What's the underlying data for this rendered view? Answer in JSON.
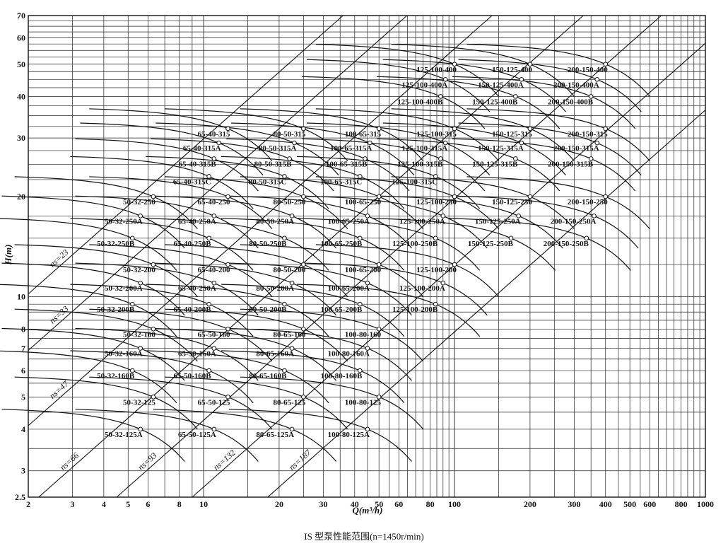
{
  "chart_data": {
    "type": "line",
    "title": "IS 型泵性能范围(n=1450r/min)",
    "xlabel": "Q(m³/h)",
    "ylabel": "H(m)",
    "x_scale": "log",
    "y_scale": "log",
    "xlim": [
      2,
      1000
    ],
    "ylim": [
      2.5,
      70
    ],
    "x_ticks": [
      {
        "v": 2,
        "label": "2"
      },
      {
        "v": 3,
        "label": "3"
      },
      {
        "v": 4,
        "label": "4"
      },
      {
        "v": 5,
        "label": "5"
      },
      {
        "v": 6,
        "label": "6"
      },
      {
        "v": 8,
        "label": "8"
      },
      {
        "v": 10,
        "label": "10"
      },
      {
        "v": 20,
        "label": "20"
      },
      {
        "v": 30,
        "label": "30"
      },
      {
        "v": 40,
        "label": "40"
      },
      {
        "v": 50,
        "label": "50"
      },
      {
        "v": 60,
        "label": "60"
      },
      {
        "v": 80,
        "label": "80"
      },
      {
        "v": 100,
        "label": "100"
      },
      {
        "v": 200,
        "label": "200"
      },
      {
        "v": 300,
        "label": "300"
      },
      {
        "v": 400,
        "label": "400"
      },
      {
        "v": 500,
        "label": "500"
      },
      {
        "v": 600,
        "label": "600"
      },
      {
        "v": 800,
        "label": "800"
      },
      {
        "v": 1000,
        "label": "1000"
      }
    ],
    "y_ticks": [
      {
        "v": 2.5,
        "label": "2.5"
      },
      {
        "v": 3,
        "label": "3"
      },
      {
        "v": 4,
        "label": "4"
      },
      {
        "v": 5,
        "label": "5"
      },
      {
        "v": 6,
        "label": "6"
      },
      {
        "v": 7,
        "label": "7"
      },
      {
        "v": 8,
        "label": "8"
      },
      {
        "v": 10,
        "label": "10"
      },
      {
        "v": 20,
        "label": "20"
      },
      {
        "v": 30,
        "label": "30"
      },
      {
        "v": 40,
        "label": "40"
      },
      {
        "v": 50,
        "label": "50"
      },
      {
        "v": 60,
        "label": "60"
      },
      {
        "v": 70,
        "label": "70"
      }
    ],
    "ns_lines": [
      {
        "label": "ns=23",
        "q": 2,
        "h": 10.2
      },
      {
        "label": "ns=33",
        "q": 2,
        "h": 6.9
      },
      {
        "label": "ns=47",
        "q": 2,
        "h": 4.1
      },
      {
        "label": "ns=66",
        "q": 2.2,
        "h": 2.5
      },
      {
        "label": "ns=93",
        "q": 4.5,
        "h": 2.5
      },
      {
        "label": "ns=132",
        "q": 9,
        "h": 2.5
      },
      {
        "label": "ns=187",
        "q": 18,
        "h": 2.5
      }
    ],
    "pumps": [
      {
        "name": "50-32-125",
        "q": 6.3,
        "h": 5.0
      },
      {
        "name": "50-32-125A",
        "q": 5.6,
        "h": 4.0
      },
      {
        "name": "50-32-160",
        "q": 6.3,
        "h": 8.0
      },
      {
        "name": "50-32-160A",
        "q": 5.6,
        "h": 7.0
      },
      {
        "name": "50-32-160B",
        "q": 5.2,
        "h": 6.0
      },
      {
        "name": "50-32-200",
        "q": 6.3,
        "h": 12.5
      },
      {
        "name": "50-32-200A",
        "q": 5.6,
        "h": 11.0
      },
      {
        "name": "50-32-200B",
        "q": 5.2,
        "h": 9.5
      },
      {
        "name": "50-32-250",
        "q": 6.3,
        "h": 20.0
      },
      {
        "name": "50-32-250A",
        "q": 5.6,
        "h": 17.5
      },
      {
        "name": "50-32-250B",
        "q": 5.2,
        "h": 15.0
      },
      {
        "name": "65-50-125",
        "q": 12.5,
        "h": 5.0
      },
      {
        "name": "65-50-125A",
        "q": 11.0,
        "h": 4.0
      },
      {
        "name": "65-50-160",
        "q": 12.5,
        "h": 8.0
      },
      {
        "name": "65-50-160A",
        "q": 11.0,
        "h": 7.0
      },
      {
        "name": "65-50-160B",
        "q": 10.5,
        "h": 6.0
      },
      {
        "name": "65-40-200",
        "q": 12.5,
        "h": 12.5
      },
      {
        "name": "65-40-250A",
        "q": 11.0,
        "h": 11.0
      },
      {
        "name": "65-40-200B",
        "q": 10.5,
        "h": 9.5
      },
      {
        "name": "65-40-250",
        "q": 12.5,
        "h": 20.0
      },
      {
        "name": "65-40-250A",
        "q": 11.0,
        "h": 17.5
      },
      {
        "name": "65-40-250B",
        "q": 10.5,
        "h": 15.0
      },
      {
        "name": "65-40-315",
        "q": 12.5,
        "h": 32.0
      },
      {
        "name": "65-40-315A",
        "q": 11.5,
        "h": 29.0
      },
      {
        "name": "65-40-315B",
        "q": 11.0,
        "h": 26.0
      },
      {
        "name": "65-40-315C",
        "q": 10.5,
        "h": 23.0
      },
      {
        "name": "80-65-125",
        "q": 25.0,
        "h": 5.0
      },
      {
        "name": "80-65-125A",
        "q": 22.5,
        "h": 4.0
      },
      {
        "name": "80-65-160",
        "q": 25.0,
        "h": 8.0
      },
      {
        "name": "80-65-160A",
        "q": 22.5,
        "h": 7.0
      },
      {
        "name": "80-65-160B",
        "q": 21.0,
        "h": 6.0
      },
      {
        "name": "80-50-200",
        "q": 25.0,
        "h": 12.5
      },
      {
        "name": "80-50-200A",
        "q": 22.5,
        "h": 11.0
      },
      {
        "name": "80-50-200B",
        "q": 21.0,
        "h": 9.5
      },
      {
        "name": "80-50-250",
        "q": 25.0,
        "h": 20.0
      },
      {
        "name": "80-50-250A",
        "q": 22.5,
        "h": 17.5
      },
      {
        "name": "80-50-250B",
        "q": 21.0,
        "h": 15.0
      },
      {
        "name": "80-50-315",
        "q": 25.0,
        "h": 32.0
      },
      {
        "name": "80-50-315A",
        "q": 23.0,
        "h": 29.0
      },
      {
        "name": "80-50-315B",
        "q": 22.0,
        "h": 26.0
      },
      {
        "name": "80-50-315C",
        "q": 21.0,
        "h": 23.0
      },
      {
        "name": "100-80-125",
        "q": 50.0,
        "h": 5.0
      },
      {
        "name": "100-80-125A",
        "q": 45.0,
        "h": 4.0
      },
      {
        "name": "100-80-160",
        "q": 50.0,
        "h": 8.0
      },
      {
        "name": "100-80-160A",
        "q": 45.0,
        "h": 7.0
      },
      {
        "name": "100-80-160B",
        "q": 42.0,
        "h": 6.0
      },
      {
        "name": "100-65-200",
        "q": 50.0,
        "h": 12.5
      },
      {
        "name": "100-65-200A",
        "q": 45.0,
        "h": 11.0
      },
      {
        "name": "100-65-200B",
        "q": 42.0,
        "h": 9.5
      },
      {
        "name": "100-65-250",
        "q": 50.0,
        "h": 20.0
      },
      {
        "name": "100-65-250A",
        "q": 45.0,
        "h": 17.5
      },
      {
        "name": "100-65-250B",
        "q": 42.0,
        "h": 15.0
      },
      {
        "name": "100-65-315",
        "q": 50.0,
        "h": 32.0
      },
      {
        "name": "100-65-315A",
        "q": 46.0,
        "h": 29.0
      },
      {
        "name": "100-65-315B",
        "q": 44.0,
        "h": 26.0
      },
      {
        "name": "100-65-315C",
        "q": 42.0,
        "h": 23.0
      },
      {
        "name": "125-100-200",
        "q": 100.0,
        "h": 12.5
      },
      {
        "name": "125-100-200A",
        "q": 90.0,
        "h": 11.0
      },
      {
        "name": "125-100-200B",
        "q": 84.0,
        "h": 9.5
      },
      {
        "name": "125-100-250",
        "q": 100.0,
        "h": 20.0
      },
      {
        "name": "125-100-250A",
        "q": 90.0,
        "h": 17.5
      },
      {
        "name": "125-100-250B",
        "q": 84.0,
        "h": 15.0
      },
      {
        "name": "125-100-315",
        "q": 100.0,
        "h": 32.0
      },
      {
        "name": "125-100-315A",
        "q": 92.0,
        "h": 29.0
      },
      {
        "name": "125-100-315B",
        "q": 88.0,
        "h": 26.0
      },
      {
        "name": "125-100-315C",
        "q": 84.0,
        "h": 23.0
      },
      {
        "name": "125-100-400",
        "q": 100.0,
        "h": 50.0
      },
      {
        "name": "125-100-400A",
        "q": 92.0,
        "h": 45.0
      },
      {
        "name": "125-100-400B",
        "q": 88.0,
        "h": 40.0
      },
      {
        "name": "150-125-250",
        "q": 200.0,
        "h": 20.0
      },
      {
        "name": "150-125-250A",
        "q": 180.0,
        "h": 17.5
      },
      {
        "name": "150-125-250B",
        "q": 168.0,
        "h": 15.0
      },
      {
        "name": "150-125-315",
        "q": 200.0,
        "h": 32.0
      },
      {
        "name": "150-125-315A",
        "q": 185.0,
        "h": 29.0
      },
      {
        "name": "150-125-315B",
        "q": 175.0,
        "h": 26.0
      },
      {
        "name": "150-125-400",
        "q": 200.0,
        "h": 50.0
      },
      {
        "name": "150-125-400A",
        "q": 185.0,
        "h": 45.0
      },
      {
        "name": "150-125-400B",
        "q": 175.0,
        "h": 40.0
      },
      {
        "name": "200-150-250",
        "q": 400.0,
        "h": 20.0
      },
      {
        "name": "200-150-250A",
        "q": 360.0,
        "h": 17.5
      },
      {
        "name": "200-150-250B",
        "q": 336.0,
        "h": 15.0
      },
      {
        "name": "200-150-315",
        "q": 400.0,
        "h": 32.0
      },
      {
        "name": "200-150-315A",
        "q": 370.0,
        "h": 29.0
      },
      {
        "name": "200-150-315B",
        "q": 350.0,
        "h": 26.0
      },
      {
        "name": "200-150-400",
        "q": 400.0,
        "h": 50.0
      },
      {
        "name": "200-150-400A",
        "q": 370.0,
        "h": 45.0
      },
      {
        "name": "200-150-400B",
        "q": 350.0,
        "h": 40.0
      }
    ]
  }
}
